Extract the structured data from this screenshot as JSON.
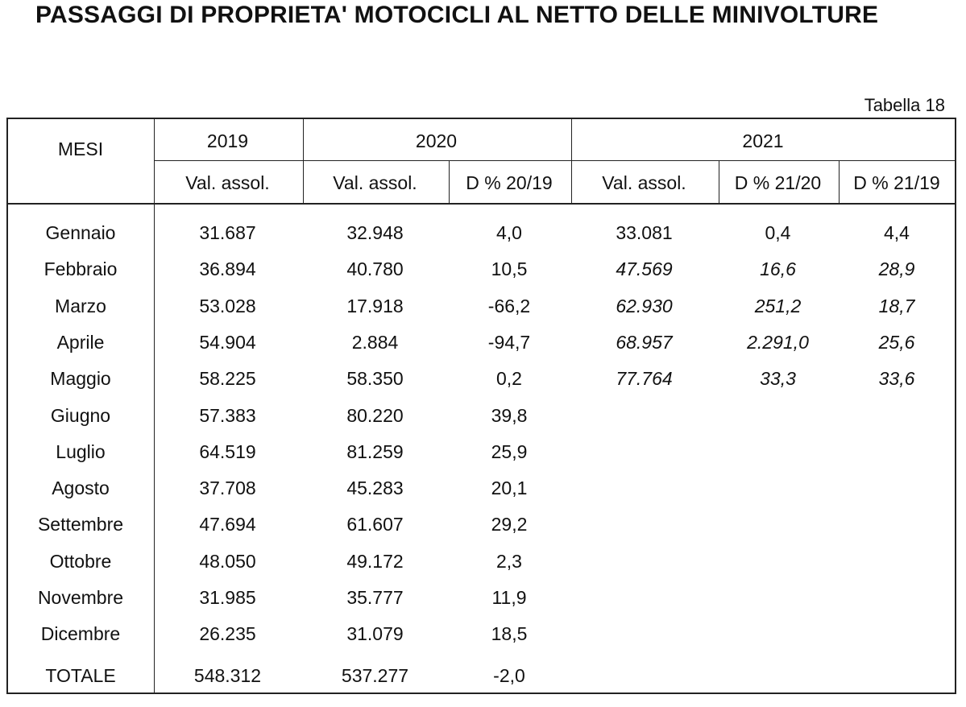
{
  "title": "PASSAGGI DI PROPRIETA' MOTOCICLI AL NETTO DELLE MINIVOLTURE",
  "table_number": "Tabella 18",
  "header": {
    "mesi": "MESI",
    "y2019": "2019",
    "y2020": "2020",
    "y2021": "2021",
    "val_assol": "Val. assol.",
    "d2019_20": "D % 20/19",
    "d2021_20": "D % 21/20",
    "d2021_19": "D % 21/19"
  },
  "rows": [
    {
      "mese": "Gennaio",
      "v2019": "31.687",
      "v2020": "32.948",
      "d20": "4,0",
      "v2021": "33.081",
      "d2120": "0,4",
      "d2119": "4,4",
      "provisional": false
    },
    {
      "mese": "Febbraio",
      "v2019": "36.894",
      "v2020": "40.780",
      "d20": "10,5",
      "v2021": "47.569",
      "d2120": "16,6",
      "d2119": "28,9",
      "provisional": true
    },
    {
      "mese": "Marzo",
      "v2019": "53.028",
      "v2020": "17.918",
      "d20": "-66,2",
      "v2021": "62.930",
      "d2120": "251,2",
      "d2119": "18,7",
      "provisional": true
    },
    {
      "mese": "Aprile",
      "v2019": "54.904",
      "v2020": "2.884",
      "d20": "-94,7",
      "v2021": "68.957",
      "d2120": "2.291,0",
      "d2119": "25,6",
      "provisional": true
    },
    {
      "mese": "Maggio",
      "v2019": "58.225",
      "v2020": "58.350",
      "d20": "0,2",
      "v2021": "77.764",
      "d2120": "33,3",
      "d2119": "33,6",
      "provisional": true
    },
    {
      "mese": "Giugno",
      "v2019": "57.383",
      "v2020": "80.220",
      "d20": "39,8",
      "v2021": "",
      "d2120": "",
      "d2119": "",
      "provisional": false
    },
    {
      "mese": "Luglio",
      "v2019": "64.519",
      "v2020": "81.259",
      "d20": "25,9",
      "v2021": "",
      "d2120": "",
      "d2119": "",
      "provisional": false
    },
    {
      "mese": "Agosto",
      "v2019": "37.708",
      "v2020": "45.283",
      "d20": "20,1",
      "v2021": "",
      "d2120": "",
      "d2119": "",
      "provisional": false
    },
    {
      "mese": "Settembre",
      "v2019": "47.694",
      "v2020": "61.607",
      "d20": "29,2",
      "v2021": "",
      "d2120": "",
      "d2119": "",
      "provisional": false
    },
    {
      "mese": "Ottobre",
      "v2019": "48.050",
      "v2020": "49.172",
      "d20": "2,3",
      "v2021": "",
      "d2120": "",
      "d2119": "",
      "provisional": false
    },
    {
      "mese": "Novembre",
      "v2019": "31.985",
      "v2020": "35.777",
      "d20": "11,9",
      "v2021": "",
      "d2120": "",
      "d2119": "",
      "provisional": false
    },
    {
      "mese": "Dicembre",
      "v2019": "26.235",
      "v2020": "31.079",
      "d20": "18,5",
      "v2021": "",
      "d2120": "",
      "d2119": "",
      "provisional": false
    }
  ],
  "totale": {
    "label": "TOTALE",
    "v2019": "548.312",
    "v2020": "537.277",
    "d20": "-2,0"
  }
}
